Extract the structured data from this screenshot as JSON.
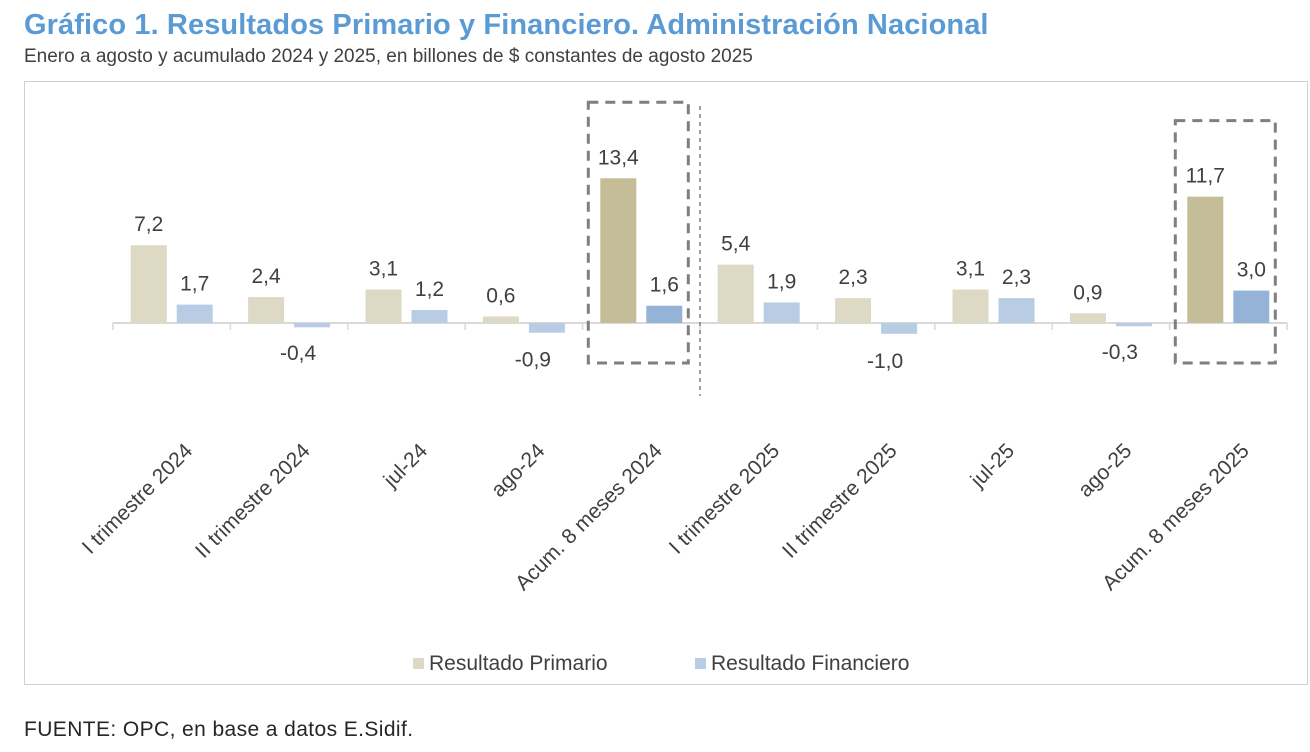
{
  "title": "Gráfico 1. Resultados Primario y Financiero. Administración Nacional",
  "subtitle": "Enero a agosto y acumulado 2024 y 2025, en billones de $ constantes de agosto 2025",
  "source": "FUENTE: OPC, en base a datos E.Sidif.",
  "chart_data": {
    "type": "bar",
    "categories": [
      "I trimestre 2024",
      "II trimestre 2024",
      "jul-24",
      "ago-24",
      "Acum. 8 meses 2024",
      "I trimestre 2025",
      "II trimestre 2025",
      "jul-25",
      "ago-25",
      "Acum. 8 meses 2025"
    ],
    "series": [
      {
        "name": "Resultado Primario",
        "values": [
          7.2,
          2.4,
          3.1,
          0.6,
          13.4,
          5.4,
          2.3,
          3.1,
          0.9,
          11.7
        ]
      },
      {
        "name": "Resultado Financiero",
        "values": [
          1.7,
          -0.4,
          1.2,
          -0.9,
          1.6,
          1.9,
          -1.0,
          2.3,
          -0.3,
          3.0
        ]
      }
    ],
    "data_labels": {
      "Resultado Primario": [
        "7,2",
        "2,4",
        "3,1",
        "0,6",
        "13,4",
        "5,4",
        "2,3",
        "3,1",
        "0,9",
        "11,7"
      ],
      "Resultado Financiero": [
        "1,7",
        "-0,4",
        "1,2",
        "-0,9",
        "1,6",
        "1,9",
        "-1,0",
        "2,3",
        "-0,3",
        "3,0"
      ]
    },
    "highlighted_categories": [
      "Acum. 8 meses 2024",
      "Acum. 8 meses 2025"
    ],
    "ylim": [
      -4,
      15
    ],
    "grid": false,
    "legend": "bottom",
    "colors": {
      "primario": "#ddd9c4",
      "primario_highlight": "#c4bd97",
      "financiero": "#b8cce4",
      "financiero_highlight": "#95b3d7"
    }
  }
}
